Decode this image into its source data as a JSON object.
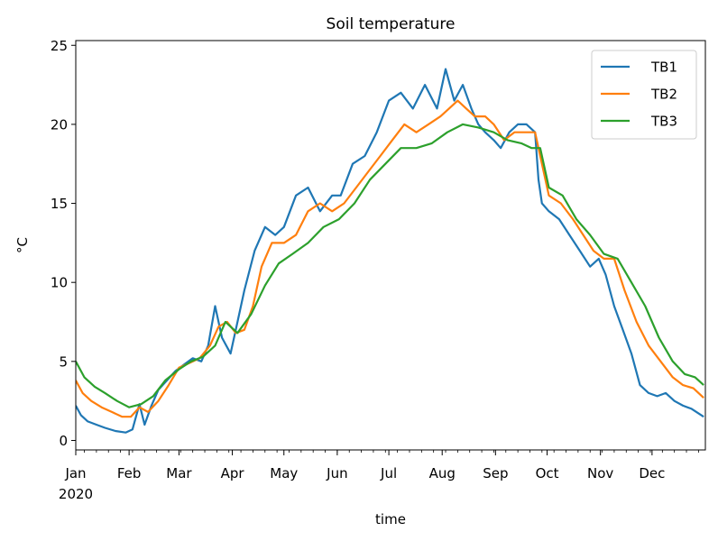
{
  "chart_data": {
    "type": "line",
    "title": "Soil temperature",
    "xlabel": "time",
    "ylabel": "°C",
    "year_label": "2020",
    "xlim": [
      "2020-01-01",
      "2021-01-01"
    ],
    "ylim": [
      -0.6,
      25.3
    ],
    "yticks": [
      0,
      5,
      10,
      15,
      20,
      25
    ],
    "xticks": [
      {
        "date": "2020-01-01",
        "label": "Jan"
      },
      {
        "date": "2020-02-01",
        "label": "Feb"
      },
      {
        "date": "2020-03-01",
        "label": "Mar"
      },
      {
        "date": "2020-04-01",
        "label": "Apr"
      },
      {
        "date": "2020-05-01",
        "label": "May"
      },
      {
        "date": "2020-06-01",
        "label": "Jun"
      },
      {
        "date": "2020-07-01",
        "label": "Jul"
      },
      {
        "date": "2020-08-01",
        "label": "Aug"
      },
      {
        "date": "2020-09-01",
        "label": "Sep"
      },
      {
        "date": "2020-10-01",
        "label": "Oct"
      },
      {
        "date": "2020-11-01",
        "label": "Nov"
      },
      {
        "date": "2020-12-01",
        "label": "Dec"
      }
    ],
    "legend_position": "top-right",
    "grid": false,
    "series": [
      {
        "name": "TB1",
        "color": "#1f77b4",
        "x": [
          "2020-01-01",
          "2020-01-04",
          "2020-01-08",
          "2020-01-13",
          "2020-01-18",
          "2020-01-24",
          "2020-01-30",
          "2020-02-03",
          "2020-02-07",
          "2020-02-10",
          "2020-02-14",
          "2020-02-18",
          "2020-02-23",
          "2020-02-28",
          "2020-03-04",
          "2020-03-09",
          "2020-03-14",
          "2020-03-18",
          "2020-03-22",
          "2020-03-26",
          "2020-03-31",
          "2020-04-04",
          "2020-04-08",
          "2020-04-14",
          "2020-04-20",
          "2020-04-26",
          "2020-05-01",
          "2020-05-08",
          "2020-05-15",
          "2020-05-22",
          "2020-05-29",
          "2020-06-03",
          "2020-06-10",
          "2020-06-17",
          "2020-06-24",
          "2020-07-01",
          "2020-07-08",
          "2020-07-15",
          "2020-07-22",
          "2020-07-29",
          "2020-08-03",
          "2020-08-08",
          "2020-08-13",
          "2020-08-18",
          "2020-08-22",
          "2020-08-26",
          "2020-08-31",
          "2020-09-04",
          "2020-09-09",
          "2020-09-14",
          "2020-09-19",
          "2020-09-24",
          "2020-09-26",
          "2020-09-28",
          "2020-10-02",
          "2020-10-08",
          "2020-10-14",
          "2020-10-20",
          "2020-10-26",
          "2020-10-31",
          "2020-11-04",
          "2020-11-09",
          "2020-11-14",
          "2020-11-19",
          "2020-11-24",
          "2020-11-29",
          "2020-12-04",
          "2020-12-09",
          "2020-12-14",
          "2020-12-19",
          "2020-12-24",
          "2020-12-31"
        ],
        "values": [
          2.2,
          1.6,
          1.2,
          1.0,
          0.8,
          0.6,
          0.5,
          0.7,
          2.3,
          1.0,
          2.2,
          3.2,
          3.8,
          4.4,
          4.8,
          5.2,
          5.0,
          6.0,
          8.5,
          6.5,
          5.5,
          7.5,
          9.5,
          12.0,
          13.5,
          13.0,
          13.5,
          15.5,
          16.0,
          14.5,
          15.5,
          15.5,
          17.5,
          18.0,
          19.5,
          21.5,
          22.0,
          21.0,
          22.5,
          21.0,
          23.5,
          21.5,
          22.5,
          21.0,
          20.0,
          19.5,
          19.0,
          18.5,
          19.5,
          20.0,
          20.0,
          19.5,
          16.5,
          15.0,
          14.5,
          14.0,
          13.0,
          12.0,
          11.0,
          11.5,
          10.5,
          8.5,
          7.0,
          5.5,
          3.5,
          3.0,
          2.8,
          3.0,
          2.5,
          2.2,
          2.0,
          1.5
        ]
      },
      {
        "name": "TB2",
        "color": "#ff7f0e",
        "x": [
          "2020-01-01",
          "2020-01-05",
          "2020-01-10",
          "2020-01-16",
          "2020-01-22",
          "2020-01-28",
          "2020-02-02",
          "2020-02-07",
          "2020-02-12",
          "2020-02-18",
          "2020-02-24",
          "2020-03-01",
          "2020-03-07",
          "2020-03-13",
          "2020-03-19",
          "2020-03-24",
          "2020-03-29",
          "2020-04-03",
          "2020-04-08",
          "2020-04-13",
          "2020-04-18",
          "2020-04-24",
          "2020-05-01",
          "2020-05-08",
          "2020-05-15",
          "2020-05-22",
          "2020-05-29",
          "2020-06-05",
          "2020-06-12",
          "2020-06-19",
          "2020-06-26",
          "2020-07-03",
          "2020-07-10",
          "2020-07-17",
          "2020-07-24",
          "2020-07-31",
          "2020-08-05",
          "2020-08-10",
          "2020-08-15",
          "2020-08-20",
          "2020-08-26",
          "2020-08-31",
          "2020-09-06",
          "2020-09-12",
          "2020-09-18",
          "2020-09-24",
          "2020-09-27",
          "2020-10-02",
          "2020-10-09",
          "2020-10-16",
          "2020-10-22",
          "2020-10-28",
          "2020-11-03",
          "2020-11-09",
          "2020-11-15",
          "2020-11-22",
          "2020-11-29",
          "2020-12-06",
          "2020-12-13",
          "2020-12-19",
          "2020-12-25",
          "2020-12-31"
        ],
        "values": [
          3.8,
          3.0,
          2.5,
          2.1,
          1.8,
          1.5,
          1.5,
          2.1,
          1.8,
          2.5,
          3.5,
          4.6,
          4.9,
          5.2,
          6.0,
          7.2,
          7.5,
          6.8,
          7.0,
          8.5,
          11.0,
          12.5,
          12.5,
          13.0,
          14.5,
          15.0,
          14.5,
          15.0,
          16.0,
          17.0,
          18.0,
          19.0,
          20.0,
          19.5,
          20.0,
          20.5,
          21.0,
          21.5,
          21.0,
          20.5,
          20.5,
          20.0,
          19.0,
          19.5,
          19.5,
          19.5,
          18.0,
          15.5,
          15.0,
          14.0,
          13.0,
          12.0,
          11.5,
          11.5,
          9.5,
          7.5,
          6.0,
          5.0,
          4.0,
          3.5,
          3.3,
          2.7
        ]
      },
      {
        "name": "TB3",
        "color": "#2ca02c",
        "x": [
          "2020-01-01",
          "2020-01-06",
          "2020-01-12",
          "2020-01-18",
          "2020-01-25",
          "2020-02-01",
          "2020-02-08",
          "2020-02-15",
          "2020-02-22",
          "2020-03-01",
          "2020-03-08",
          "2020-03-15",
          "2020-03-22",
          "2020-03-28",
          "2020-04-04",
          "2020-04-12",
          "2020-04-20",
          "2020-04-28",
          "2020-05-06",
          "2020-05-15",
          "2020-05-24",
          "2020-06-02",
          "2020-06-11",
          "2020-06-20",
          "2020-06-29",
          "2020-07-08",
          "2020-07-17",
          "2020-07-26",
          "2020-08-04",
          "2020-08-13",
          "2020-08-22",
          "2020-08-31",
          "2020-09-08",
          "2020-09-16",
          "2020-09-22",
          "2020-09-27",
          "2020-10-02",
          "2020-10-10",
          "2020-10-18",
          "2020-10-26",
          "2020-11-03",
          "2020-11-11",
          "2020-11-19",
          "2020-11-27",
          "2020-12-05",
          "2020-12-13",
          "2020-12-20",
          "2020-12-26",
          "2020-12-31"
        ],
        "values": [
          5.0,
          4.0,
          3.4,
          3.0,
          2.5,
          2.1,
          2.3,
          2.8,
          3.8,
          4.5,
          5.0,
          5.3,
          6.0,
          7.5,
          6.8,
          8.0,
          9.8,
          11.2,
          11.8,
          12.5,
          13.5,
          14.0,
          15.0,
          16.5,
          17.5,
          18.5,
          18.5,
          18.8,
          19.5,
          20.0,
          19.8,
          19.5,
          19.0,
          18.8,
          18.5,
          18.5,
          16.0,
          15.5,
          14.0,
          13.0,
          11.8,
          11.5,
          10.0,
          8.5,
          6.5,
          5.0,
          4.2,
          4.0,
          3.5
        ]
      }
    ]
  }
}
